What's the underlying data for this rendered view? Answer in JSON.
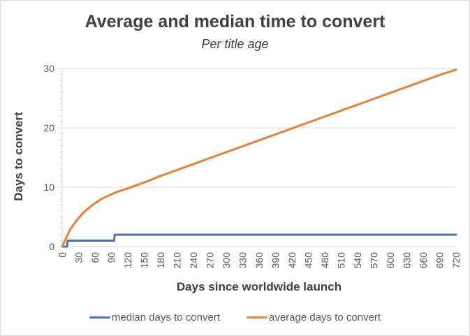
{
  "chart_data": {
    "type": "line",
    "title": "Average and median time to convert",
    "subtitle": "Per title age",
    "xlabel": "Days since worldwide launch",
    "ylabel": "Days to convert",
    "xlim": [
      0,
      720
    ],
    "ylim": [
      0,
      30
    ],
    "x_ticks": [
      0,
      30,
      60,
      90,
      120,
      150,
      180,
      210,
      240,
      270,
      300,
      330,
      360,
      390,
      420,
      450,
      480,
      510,
      540,
      570,
      600,
      630,
      660,
      690,
      720
    ],
    "y_ticks": [
      0,
      10,
      20,
      30
    ],
    "y_minor_tick_step": 1,
    "grid": "horizontal-major",
    "legend_position": "bottom",
    "colors": {
      "grid": "#D9D9D9",
      "axis": "#D9D9D9",
      "tick_label": "#595959",
      "title": "#404040",
      "subtitle": "#404040",
      "axis_title": "#404040",
      "legend_text": "#595959"
    },
    "series": [
      {
        "name": "median days to convert",
        "color": "#4472C4",
        "points": [
          [
            0,
            0
          ],
          [
            9,
            0
          ],
          [
            10,
            1
          ],
          [
            95,
            1
          ],
          [
            96,
            2
          ],
          [
            720,
            2
          ]
        ]
      },
      {
        "name": "average days to convert",
        "color": "#ED7D31",
        "points": [
          [
            0,
            0
          ],
          [
            5,
            1
          ],
          [
            10,
            2
          ],
          [
            15,
            2.9
          ],
          [
            20,
            3.6
          ],
          [
            25,
            4.2
          ],
          [
            30,
            4.8
          ],
          [
            40,
            5.8
          ],
          [
            50,
            6.6
          ],
          [
            60,
            7.3
          ],
          [
            70,
            7.9
          ],
          [
            80,
            8.4
          ],
          [
            90,
            8.8
          ],
          [
            100,
            9.2
          ],
          [
            110,
            9.5
          ],
          [
            120,
            9.8
          ],
          [
            150,
            10.8
          ],
          [
            180,
            11.9
          ],
          [
            210,
            12.9
          ],
          [
            240,
            13.9
          ],
          [
            270,
            14.9
          ],
          [
            300,
            15.9
          ],
          [
            330,
            16.9
          ],
          [
            360,
            17.9
          ],
          [
            390,
            18.9
          ],
          [
            420,
            19.9
          ],
          [
            450,
            20.9
          ],
          [
            480,
            21.9
          ],
          [
            510,
            22.9
          ],
          [
            540,
            23.9
          ],
          [
            570,
            24.9
          ],
          [
            600,
            25.9
          ],
          [
            630,
            26.9
          ],
          [
            660,
            27.9
          ],
          [
            690,
            28.9
          ],
          [
            720,
            29.8
          ]
        ]
      }
    ]
  }
}
